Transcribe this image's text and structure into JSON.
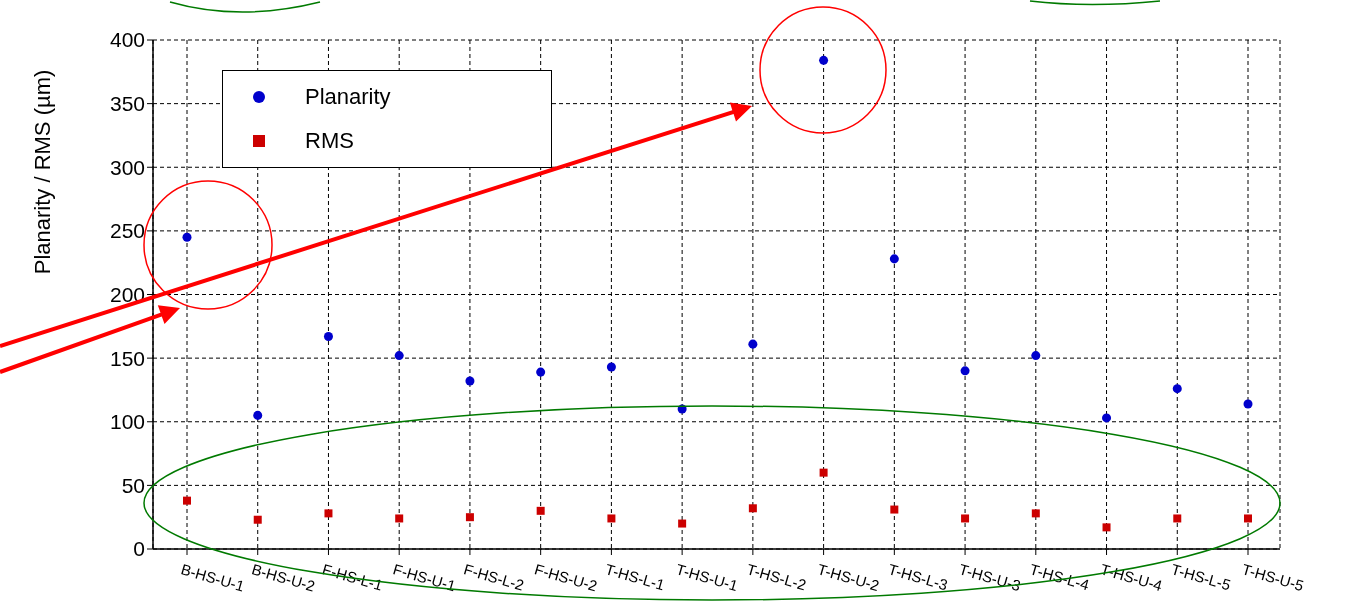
{
  "chart_data": {
    "type": "scatter",
    "ylabel": "Planarity / RMS (µm)",
    "categories": [
      "B-HS-U-1",
      "B-HS-U-2",
      "F-HS-L-1",
      "F-HS-U-1",
      "F-HS-L-2",
      "F-HS-U-2",
      "T-HS-L-1",
      "T-HS-U-1",
      "T-HS-L-2",
      "T-HS-U-2",
      "T-HS-L-3",
      "T-HS-U-3",
      "T-HS-L-4",
      "T-HS-U-4",
      "T-HS-L-5",
      "T-HS-U-5"
    ],
    "series": [
      {
        "name": "Planarity",
        "color": "#0000cc",
        "marker": "circle",
        "values": [
          245,
          105,
          167,
          152,
          132,
          139,
          143,
          110,
          161,
          384,
          228,
          140,
          152,
          103,
          126,
          114
        ]
      },
      {
        "name": "RMS",
        "color": "#cc0000",
        "marker": "square",
        "values": [
          38,
          23,
          28,
          24,
          25,
          30,
          24,
          20,
          32,
          60,
          31,
          24,
          28,
          17,
          24,
          24
        ]
      }
    ],
    "ylim": [
      0,
      400
    ],
    "yticks": [
      0,
      50,
      100,
      150,
      200,
      250,
      300,
      350,
      400
    ],
    "grid": true,
    "legend": "top left"
  }
}
